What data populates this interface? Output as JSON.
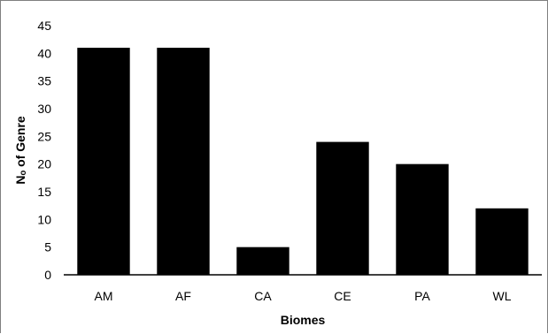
{
  "chart_data": {
    "type": "bar",
    "categories": [
      "AM",
      "AF",
      "CA",
      "CE",
      "PA",
      "WL"
    ],
    "values": [
      41,
      41,
      5,
      24,
      20,
      12
    ],
    "title": "",
    "xlabel": "Biomes",
    "ylabel": "Nₒ of Genre",
    "ylim": [
      0,
      45
    ],
    "yticks": [
      "0",
      "5",
      "10",
      "15",
      "20",
      "25",
      "30",
      "35",
      "40",
      "45"
    ],
    "grid": false,
    "legend": "none",
    "bar_color": "#000000",
    "axis_color": "#000000"
  }
}
